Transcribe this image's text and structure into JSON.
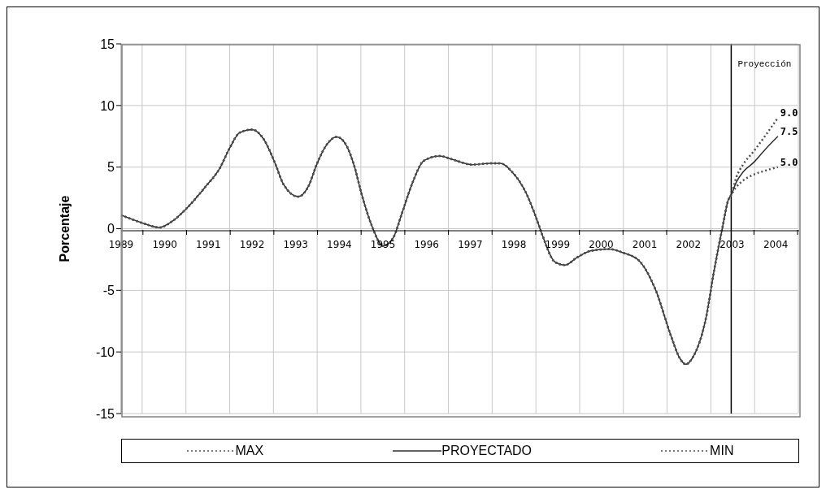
{
  "chart_data": {
    "type": "line",
    "ylabel": "Porcentaje",
    "x": [
      1989.5,
      1990.0,
      1990.37,
      1990.69,
      1991.0,
      1991.43,
      1991.76,
      1991.98,
      1992.22,
      1992.5,
      1992.76,
      1993.04,
      1993.22,
      1993.56,
      1993.8,
      1993.98,
      1994.17,
      1994.44,
      1994.67,
      1994.85,
      1995.0,
      1995.26,
      1995.5,
      1995.74,
      1995.93,
      1996.19,
      1996.43,
      1996.8,
      1997.11,
      1997.54,
      1997.96,
      1998.19,
      1998.46,
      1998.78,
      1999.02,
      1999.15,
      1999.44,
      1999.67,
      1999.94,
      2000.26,
      2000.69,
      2001.0,
      2001.37,
      2001.74,
      2002.11,
      2002.3,
      2002.44,
      2002.59,
      2002.91,
      2003.09,
      2003.28,
      2003.41,
      2003.48,
      2003.6,
      2003.75,
      2004.0,
      2004.25,
      2004.55
    ],
    "series": [
      {
        "name": "MAX",
        "color": "#505050",
        "line_style": "dotted",
        "values": [
          1.1,
          0.45,
          0.1,
          0.65,
          1.65,
          3.4,
          4.9,
          6.5,
          7.8,
          8.05,
          7.3,
          5.2,
          3.6,
          2.6,
          3.5,
          5.2,
          6.6,
          7.45,
          6.7,
          5.0,
          2.95,
          0.1,
          -1.4,
          -0.7,
          1.2,
          3.85,
          5.5,
          5.9,
          5.6,
          5.2,
          5.3,
          5.3,
          4.6,
          2.9,
          0.8,
          -0.5,
          -2.7,
          -2.95,
          -2.35,
          -1.8,
          -1.65,
          -1.95,
          -2.6,
          -4.9,
          -8.8,
          -10.5,
          -11.0,
          -10.5,
          -7.1,
          -3.35,
          0.1,
          2.3,
          2.75,
          4.2,
          5.2,
          6.3,
          7.5,
          9.0
        ],
        "value_labels": [
          null,
          null,
          null,
          null,
          null,
          null,
          null,
          null,
          null,
          null,
          null,
          null,
          null,
          null,
          null,
          null,
          null,
          null,
          null,
          null,
          null,
          null,
          null,
          null,
          null,
          null,
          null,
          null,
          null,
          null,
          null,
          null,
          null,
          null,
          null,
          null,
          null,
          null,
          null,
          null,
          null,
          null,
          null,
          null,
          null,
          null,
          null,
          null,
          null,
          null,
          null,
          null,
          null,
          null,
          null,
          null,
          null,
          "9.0"
        ]
      },
      {
        "name": "PROYECTADO",
        "color": "#303030",
        "line_style": "solid",
        "values": [
          1.1,
          0.45,
          0.1,
          0.65,
          1.65,
          3.4,
          4.9,
          6.5,
          7.8,
          8.05,
          7.3,
          5.2,
          3.6,
          2.6,
          3.5,
          5.2,
          6.6,
          7.45,
          6.7,
          5.0,
          2.95,
          0.1,
          -1.4,
          -0.7,
          1.2,
          3.85,
          5.5,
          5.9,
          5.6,
          5.2,
          5.3,
          5.3,
          4.6,
          2.9,
          0.8,
          -0.5,
          -2.7,
          -2.95,
          -2.35,
          -1.8,
          -1.65,
          -1.95,
          -2.6,
          -4.9,
          -8.8,
          -10.5,
          -11.0,
          -10.5,
          -7.1,
          -3.35,
          0.1,
          2.3,
          2.75,
          3.8,
          4.6,
          5.4,
          6.4,
          7.5
        ],
        "value_labels": [
          null,
          null,
          null,
          null,
          null,
          null,
          null,
          null,
          null,
          null,
          null,
          null,
          null,
          null,
          null,
          null,
          null,
          null,
          null,
          null,
          null,
          null,
          null,
          null,
          null,
          null,
          null,
          null,
          null,
          null,
          null,
          null,
          null,
          null,
          null,
          null,
          null,
          null,
          null,
          null,
          null,
          null,
          null,
          null,
          null,
          null,
          null,
          null,
          null,
          null,
          null,
          null,
          null,
          null,
          null,
          null,
          null,
          "7.5"
        ]
      },
      {
        "name": "MIN",
        "color": "#505050",
        "line_style": "dotted",
        "values": [
          1.1,
          0.45,
          0.1,
          0.65,
          1.65,
          3.4,
          4.9,
          6.5,
          7.8,
          8.05,
          7.3,
          5.2,
          3.6,
          2.6,
          3.5,
          5.2,
          6.6,
          7.45,
          6.7,
          5.0,
          2.95,
          0.1,
          -1.4,
          -0.7,
          1.2,
          3.85,
          5.5,
          5.9,
          5.6,
          5.2,
          5.3,
          5.3,
          4.6,
          2.9,
          0.8,
          -0.5,
          -2.7,
          -2.95,
          -2.35,
          -1.8,
          -1.65,
          -1.95,
          -2.6,
          -4.9,
          -8.8,
          -10.5,
          -11.0,
          -10.5,
          -7.1,
          -3.35,
          0.1,
          2.3,
          2.75,
          3.4,
          3.9,
          4.4,
          4.7,
          5.0
        ],
        "value_labels": [
          null,
          null,
          null,
          null,
          null,
          null,
          null,
          null,
          null,
          null,
          null,
          null,
          null,
          null,
          null,
          null,
          null,
          null,
          null,
          null,
          null,
          null,
          null,
          null,
          null,
          null,
          null,
          null,
          null,
          null,
          null,
          null,
          null,
          null,
          null,
          null,
          null,
          null,
          null,
          null,
          null,
          null,
          null,
          null,
          null,
          null,
          null,
          null,
          null,
          null,
          null,
          null,
          null,
          null,
          null,
          null,
          null,
          "5.0"
        ]
      }
    ],
    "xlim": [
      1989.5,
      2005
    ],
    "xticks": [
      {
        "value": 1989.5,
        "label": "1989"
      },
      {
        "value": 1990,
        "label": null
      },
      {
        "value": 1990.5,
        "label": "1990"
      },
      {
        "value": 1991,
        "label": null
      },
      {
        "value": 1991.5,
        "label": "1991"
      },
      {
        "value": 1992,
        "label": null
      },
      {
        "value": 1992.5,
        "label": "1992"
      },
      {
        "value": 1993,
        "label": null
      },
      {
        "value": 1993.5,
        "label": "1993"
      },
      {
        "value": 1994,
        "label": null
      },
      {
        "value": 1994.5,
        "label": "1994"
      },
      {
        "value": 1995,
        "label": null
      },
      {
        "value": 1995.5,
        "label": "1995"
      },
      {
        "value": 1996,
        "label": null
      },
      {
        "value": 1996.5,
        "label": "1996"
      },
      {
        "value": 1997,
        "label": null
      },
      {
        "value": 1997.5,
        "label": "1997"
      },
      {
        "value": 1998,
        "label": null
      },
      {
        "value": 1998.5,
        "label": "1998"
      },
      {
        "value": 1999,
        "label": null
      },
      {
        "value": 1999.5,
        "label": "1999"
      },
      {
        "value": 2000,
        "label": null
      },
      {
        "value": 2000.5,
        "label": "2000"
      },
      {
        "value": 2001,
        "label": null
      },
      {
        "value": 2001.5,
        "label": "2001"
      },
      {
        "value": 2002,
        "label": null
      },
      {
        "value": 2002.5,
        "label": "2002"
      },
      {
        "value": 2003,
        "label": null
      },
      {
        "value": 2003.5,
        "label": "2003"
      },
      {
        "value": 2004,
        "label": null
      },
      {
        "value": 2004.5,
        "label": "2004"
      },
      {
        "value": 2005,
        "label": null
      }
    ],
    "ylim": [
      -15,
      15
    ],
    "yticks": [
      -15,
      -10,
      -5,
      0,
      5,
      10,
      15
    ],
    "ref_lines": [
      {
        "axis": "x",
        "value": 2003.48,
        "label": "Proyección",
        "color": "#000000"
      }
    ],
    "grid": true,
    "legend": "bottom",
    "marker": "none"
  }
}
